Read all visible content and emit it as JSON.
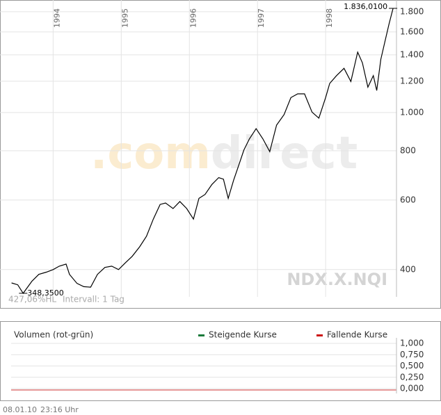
{
  "chart_data": [
    {
      "type": "line",
      "yscale": "log",
      "grid": true,
      "watermark": [
        ".com",
        "direct"
      ],
      "symbol": "NDX.X.NQI",
      "info": [
        "427,06%HL",
        "Intervall: 1 Tag"
      ],
      "annotations": [
        {
          "text": "1.836,0100",
          "x": 1998.99,
          "y": 1836.01
        },
        {
          "text": "348,3500",
          "x": 1993.56,
          "y": 348.35
        }
      ],
      "xlim": [
        1993.22,
        1999.04
      ],
      "xticks": [
        1994,
        1995,
        1996,
        1997,
        1998
      ],
      "ylim": [
        344,
        1866
      ],
      "yticks": [
        {
          "value": 400,
          "label": "400"
        },
        {
          "value": 600,
          "label": "600"
        },
        {
          "value": 800,
          "label": "800"
        },
        {
          "value": 1000,
          "label": "1.000"
        },
        {
          "value": 1200,
          "label": "1.200"
        },
        {
          "value": 1400,
          "label": "1.400"
        },
        {
          "value": 1600,
          "label": "1.600"
        },
        {
          "value": 1800,
          "label": "1.800"
        }
      ],
      "color": "#000000",
      "x": [
        1993.39,
        1993.48,
        1993.56,
        1993.69,
        1993.79,
        1993.9,
        1994,
        1994.09,
        1994.19,
        1994.24,
        1994.35,
        1994.45,
        1994.55,
        1994.65,
        1994.76,
        1994.86,
        1994.96,
        1995.06,
        1995.16,
        1995.27,
        1995.37,
        1995.47,
        1995.57,
        1995.65,
        1995.76,
        1995.86,
        1995.96,
        1996.06,
        1996.14,
        1996.23,
        1996.33,
        1996.43,
        1996.5,
        1996.57,
        1996.65,
        1996.73,
        1996.8,
        1996.88,
        1996.98,
        1997.08,
        1997.18,
        1997.28,
        1997.39,
        1997.49,
        1997.59,
        1997.69,
        1997.8,
        1997.9,
        1998,
        1998.06,
        1998.16,
        1998.27,
        1998.37,
        1998.47,
        1998.54,
        1998.62,
        1998.7,
        1998.75,
        1998.81,
        1998.87,
        1998.93,
        1998.99
      ],
      "values": [
        370,
        366,
        348.35,
        374,
        389,
        394,
        400,
        408,
        413,
        389,
        369,
        362,
        361,
        389,
        405,
        408,
        400,
        416,
        432,
        457,
        486,
        537,
        585,
        590,
        571,
        595,
        571,
        537,
        606,
        620,
        657,
        684,
        678,
        606,
        674,
        740,
        803,
        857,
        910,
        857,
        796,
        929,
        988,
        1091,
        1115,
        1115,
        1002,
        968,
        1091,
        1185,
        1240,
        1294,
        1198,
        1422,
        1336,
        1159,
        1240,
        1137,
        1364,
        1513,
        1673,
        1836.01
      ]
    },
    {
      "type": "bar",
      "title": "Volumen (rot-grün)",
      "series": [
        {
          "name": "Steigende Kurse",
          "color": "#1a7a3a"
        },
        {
          "name": "Fallende Kurse",
          "color": "#cc1111"
        }
      ],
      "ylim": [
        0,
        1
      ],
      "yticks": [
        {
          "value": 0,
          "label": "0,000"
        },
        {
          "value": 0.25,
          "label": "0,250"
        },
        {
          "value": 0.5,
          "label": "0,500"
        },
        {
          "value": 0.75,
          "label": "0,750"
        },
        {
          "value": 1,
          "label": "1,000"
        }
      ],
      "grid": true
    }
  ],
  "footer": [
    "08.01.10",
    "23:16 Uhr"
  ]
}
